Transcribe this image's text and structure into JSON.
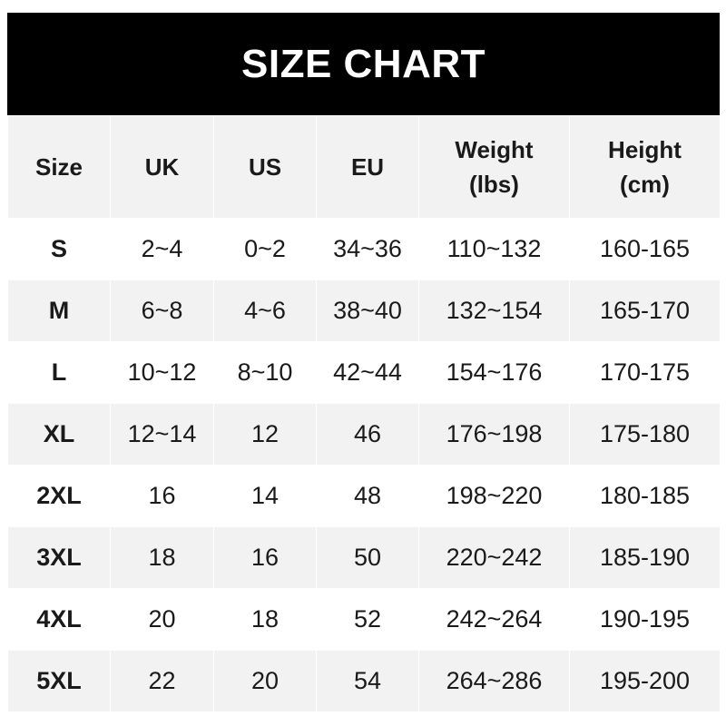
{
  "title": "SIZE CHART",
  "colors": {
    "header_bg": "#000000",
    "header_text": "#ffffff",
    "stripe": "#f2f2f2"
  },
  "columns": [
    "Size",
    "UK",
    "US",
    "EU",
    "Weight (lbs)",
    "Height (cm)"
  ],
  "column_lines": [
    [
      "Size"
    ],
    [
      "UK"
    ],
    [
      "US"
    ],
    [
      "EU"
    ],
    [
      "Weight",
      "(lbs)"
    ],
    [
      "Height",
      "(cm)"
    ]
  ],
  "rows": [
    [
      "S",
      "2~4",
      "0~2",
      "34~36",
      "110~132",
      "160-165"
    ],
    [
      "M",
      "6~8",
      "4~6",
      "38~40",
      "132~154",
      "165-170"
    ],
    [
      "L",
      "10~12",
      "8~10",
      "42~44",
      "154~176",
      "170-175"
    ],
    [
      "XL",
      "12~14",
      "12",
      "46",
      "176~198",
      "175-180"
    ],
    [
      "2XL",
      "16",
      "14",
      "48",
      "198~220",
      "180-185"
    ],
    [
      "3XL",
      "18",
      "16",
      "50",
      "220~242",
      "185-190"
    ],
    [
      "4XL",
      "20",
      "18",
      "52",
      "242~264",
      "190-195"
    ],
    [
      "5XL",
      "22",
      "20",
      "54",
      "264~286",
      "195-200"
    ]
  ]
}
